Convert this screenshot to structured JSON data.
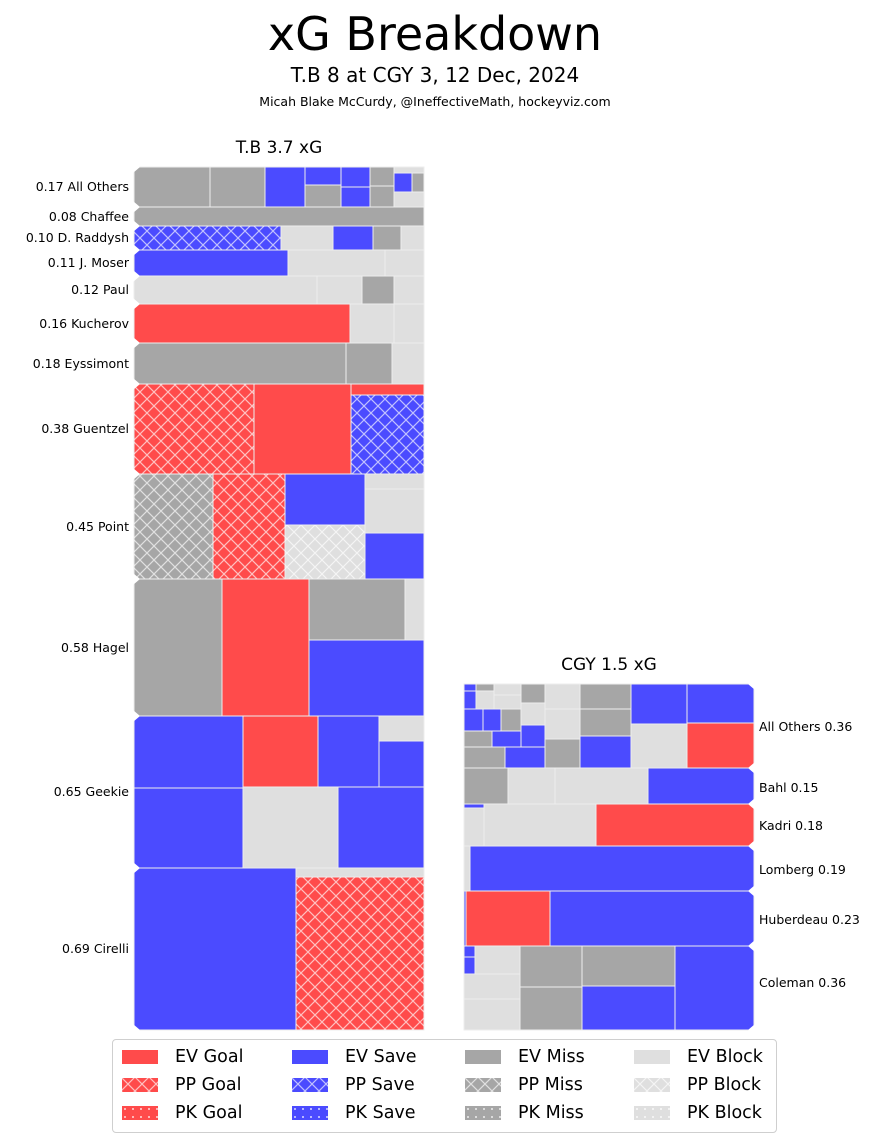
{
  "title": "xG Breakdown",
  "subtitle": "T.B 8 at CGY 3, 12 Dec, 2024",
  "credit": "Micah Blake McCurdy, @IneffectiveMath, hockeyviz.com",
  "colors": {
    "goal": "#ff4b4b",
    "save": "#4b4bff",
    "miss": "#a6a6a6",
    "block": "#dfdfdf",
    "border": "#eeeeee"
  },
  "chart_data": {
    "type": "treemap",
    "title": "xG Breakdown",
    "teams": [
      {
        "name": "T.B",
        "total_xg": 3.7,
        "label": "T.B 3.7 xG",
        "label_side": "left",
        "players": [
          {
            "name": "All Others",
            "xg": 0.17,
            "label": "0.17 All Others"
          },
          {
            "name": "Chaffee",
            "xg": 0.08,
            "label": "0.08 Chaffee"
          },
          {
            "name": "D. Raddysh",
            "xg": 0.1,
            "label": "0.10 D. Raddysh"
          },
          {
            "name": "J. Moser",
            "xg": 0.11,
            "label": "0.11 J. Moser"
          },
          {
            "name": "Paul",
            "xg": 0.12,
            "label": "0.12 Paul"
          },
          {
            "name": "Kucherov",
            "xg": 0.16,
            "label": "0.16 Kucherov"
          },
          {
            "name": "Eyssimont",
            "xg": 0.18,
            "label": "0.18 Eyssimont"
          },
          {
            "name": "Guentzel",
            "xg": 0.38,
            "label": "0.38 Guentzel"
          },
          {
            "name": "Point",
            "xg": 0.45,
            "label": "0.45 Point"
          },
          {
            "name": "Hagel",
            "xg": 0.58,
            "label": "0.58 Hagel"
          },
          {
            "name": "Geekie",
            "xg": 0.65,
            "label": "0.65 Geekie"
          },
          {
            "name": "Cirelli",
            "xg": 0.69,
            "label": "0.69 Cirelli"
          }
        ]
      },
      {
        "name": "CGY",
        "total_xg": 1.5,
        "label": "CGY 1.5 xG",
        "label_side": "right",
        "players": [
          {
            "name": "All Others",
            "xg": 0.36,
            "label": "All Others 0.36"
          },
          {
            "name": "Bahl",
            "xg": 0.15,
            "label": "Bahl 0.15"
          },
          {
            "name": "Kadri",
            "xg": 0.18,
            "label": "Kadri 0.18"
          },
          {
            "name": "Lomberg",
            "xg": 0.19,
            "label": "Lomberg 0.19"
          },
          {
            "name": "Huberdeau",
            "xg": 0.23,
            "label": "Huberdeau 0.23"
          },
          {
            "name": "Coleman",
            "xg": 0.36,
            "label": "Coleman 0.36"
          }
        ]
      }
    ],
    "shot_types": [
      "EV Goal",
      "EV Save",
      "EV Miss",
      "EV Block",
      "PP Goal",
      "PP Save",
      "PP Miss",
      "PP Block",
      "PK Goal",
      "PK Save",
      "PK Miss",
      "PK Block"
    ],
    "legend_position": "bottom"
  },
  "legend": {
    "items": [
      {
        "label": "EV Goal",
        "outcome": "goal",
        "strength": "EV"
      },
      {
        "label": "PP Goal",
        "outcome": "goal",
        "strength": "PP"
      },
      {
        "label": "PK Goal",
        "outcome": "goal",
        "strength": "PK"
      },
      {
        "label": "EV Save",
        "outcome": "save",
        "strength": "EV"
      },
      {
        "label": "PP Save",
        "outcome": "save",
        "strength": "PP"
      },
      {
        "label": "PK Save",
        "outcome": "save",
        "strength": "PK"
      },
      {
        "label": "EV Miss",
        "outcome": "miss",
        "strength": "EV"
      },
      {
        "label": "PP Miss",
        "outcome": "miss",
        "strength": "PP"
      },
      {
        "label": "PK Miss",
        "outcome": "miss",
        "strength": "PK"
      },
      {
        "label": "EV Block",
        "outcome": "block",
        "strength": "EV"
      },
      {
        "label": "PP Block",
        "outcome": "block",
        "strength": "PP"
      },
      {
        "label": "PK Block",
        "outcome": "block",
        "strength": "PK"
      }
    ]
  }
}
